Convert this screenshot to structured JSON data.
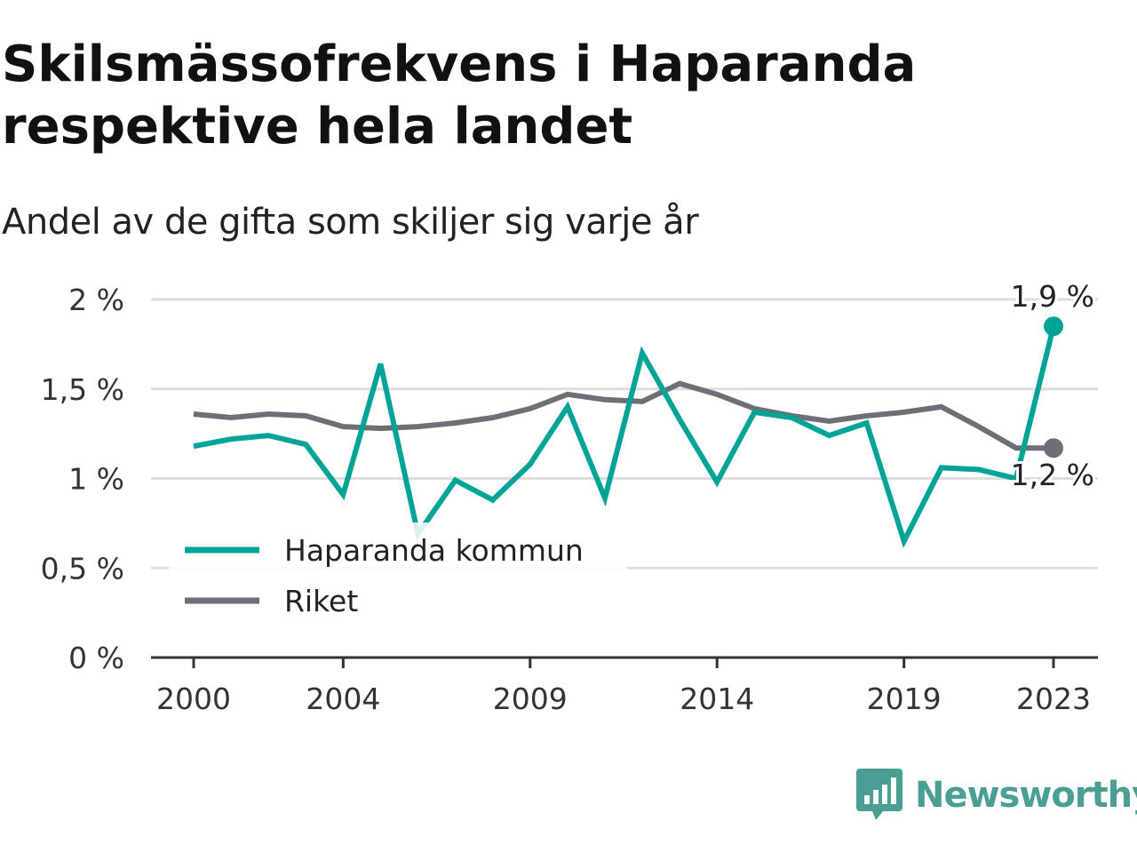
{
  "title": "Skilsmässofrekvens i Haparanda respektive hela landet",
  "subtitle": "Andel av de gifta som skiljer sig varje år",
  "brand": {
    "name": "Newsworthy",
    "icon": "newsworthy-logo-icon"
  },
  "colors": {
    "haparanda": "#00a496",
    "riket": "#6e6e76",
    "grid": "#dddddd",
    "axis": "#333333"
  },
  "chart_data": {
    "type": "line",
    "title": "Skilsmässofrekvens i Haparanda respektive hela landet",
    "subtitle": "Andel av de gifta som skiljer sig varje år",
    "xlabel": "",
    "ylabel": "",
    "x": [
      2000,
      2001,
      2002,
      2003,
      2004,
      2005,
      2006,
      2007,
      2008,
      2009,
      2010,
      2011,
      2012,
      2013,
      2014,
      2015,
      2016,
      2017,
      2018,
      2019,
      2020,
      2021,
      2022,
      2023
    ],
    "x_ticks": [
      "2000",
      "2004",
      "2009",
      "2014",
      "2019",
      "2023"
    ],
    "x_tick_values": [
      2000,
      2004,
      2009,
      2014,
      2019,
      2023
    ],
    "y_ticks": [
      "0 %",
      "0,5 %",
      "1 %",
      "1,5 %",
      "2 %"
    ],
    "y_tick_values": [
      0,
      0.5,
      1,
      1.5,
      2
    ],
    "ylim": [
      0,
      2
    ],
    "xlim": [
      2000,
      2023
    ],
    "grid": "horizontal",
    "legend": "bottom-left",
    "series": [
      {
        "name": "Haparanda kommun",
        "color": "#00a496",
        "values": [
          1.18,
          1.22,
          1.24,
          1.19,
          0.91,
          1.64,
          0.69,
          0.99,
          0.88,
          1.08,
          1.4,
          0.89,
          1.7,
          1.33,
          0.98,
          1.37,
          1.34,
          1.24,
          1.31,
          0.65,
          1.06,
          1.05,
          1.0,
          1.85
        ],
        "end_label": "1,9 %"
      },
      {
        "name": "Riket",
        "color": "#6e6e76",
        "values": [
          1.36,
          1.34,
          1.36,
          1.35,
          1.29,
          1.28,
          1.29,
          1.31,
          1.34,
          1.39,
          1.47,
          1.44,
          1.43,
          1.53,
          1.47,
          1.39,
          1.35,
          1.32,
          1.35,
          1.37,
          1.4,
          1.29,
          1.17,
          1.17
        ],
        "end_label": "1,2 %"
      }
    ]
  }
}
